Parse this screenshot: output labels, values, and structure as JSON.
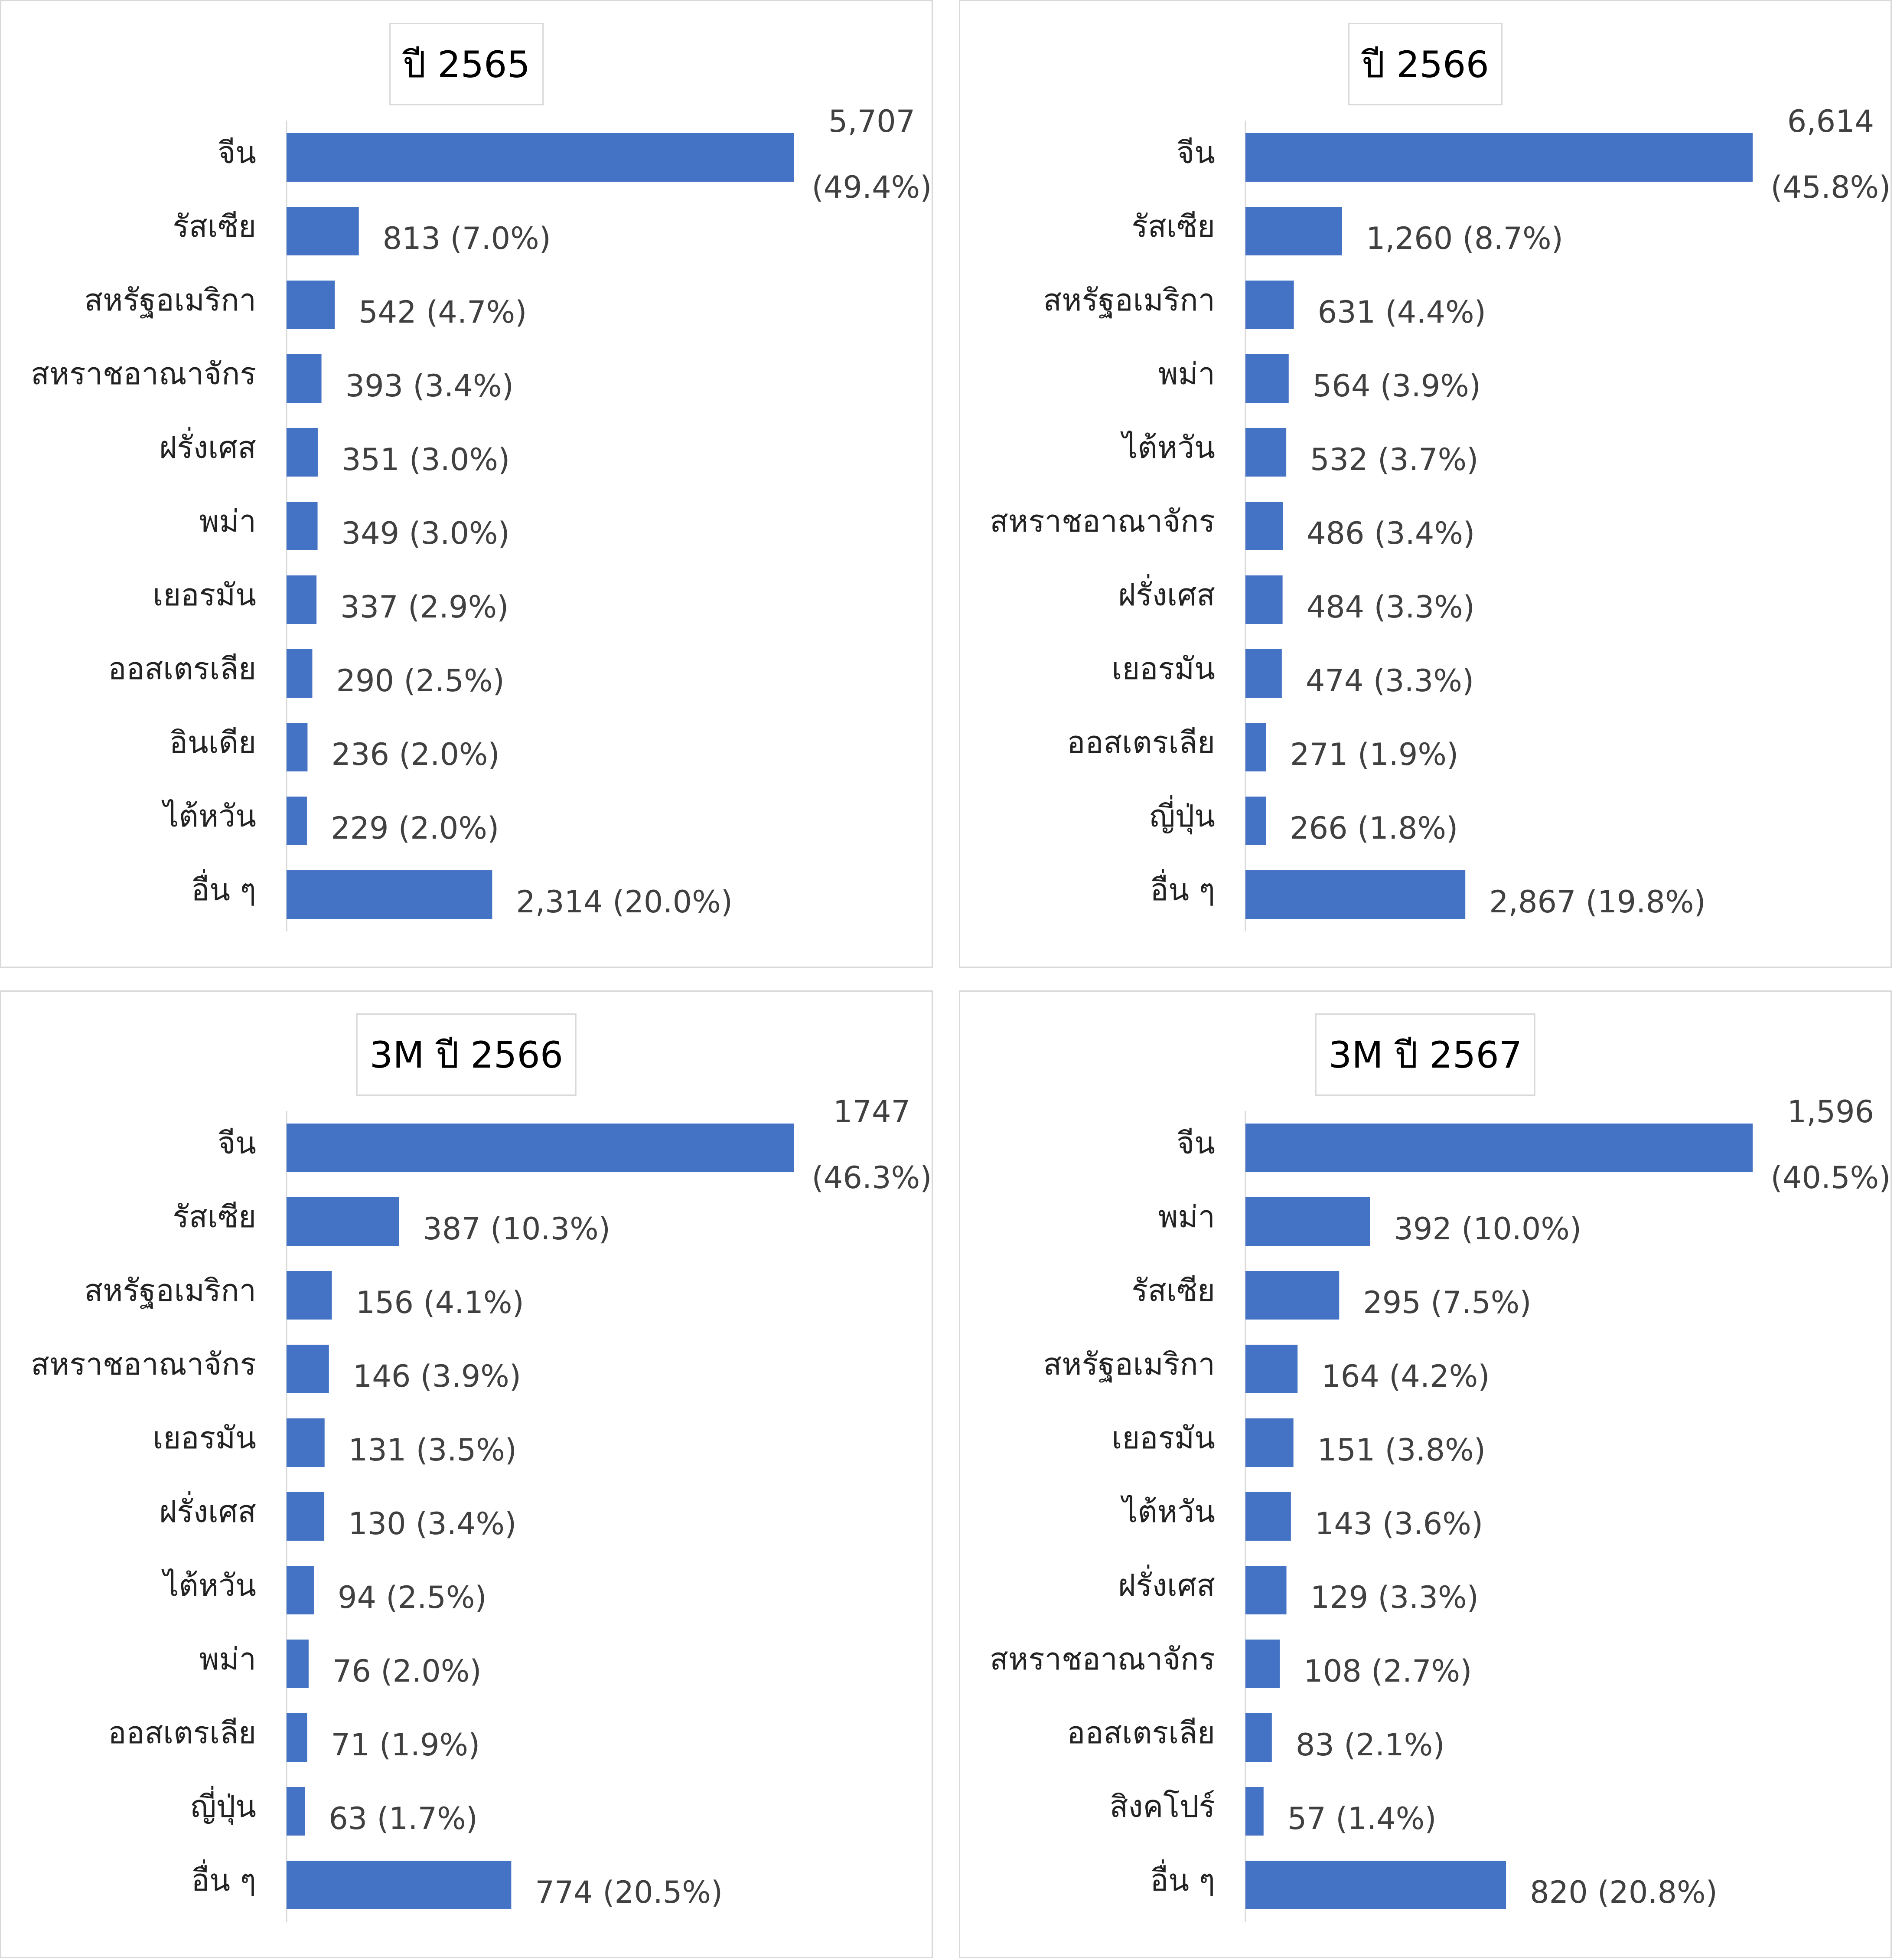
{
  "bar_color": "#4472c4",
  "chart_data": [
    {
      "type": "bar",
      "orientation": "horizontal",
      "title": "ปี 2565",
      "categories": [
        "จีน",
        "รัสเซีย",
        "สหรัฐอเมริกา",
        "สหราชอาณาจักร",
        "ฝรั่งเศส",
        "พม่า",
        "เยอรมัน",
        "ออสเตรเลีย",
        "อินเดีย",
        "ไต้หวัน",
        "อื่น ๆ"
      ],
      "values": [
        5707,
        813,
        542,
        393,
        351,
        349,
        337,
        290,
        236,
        229,
        2314
      ],
      "value_labels": [
        "5,707",
        "813 (7.0%)",
        "542 (4.7%)",
        "393 (3.4%)",
        "351 (3.0%)",
        "349 (3.0%)",
        "337 (2.9%)",
        "290 (2.5%)",
        "236 (2.0%)",
        "229 (2.0%)",
        "2,314 (20.0%)"
      ],
      "first_label_pct": "(49.4%)"
    },
    {
      "type": "bar",
      "orientation": "horizontal",
      "title": "ปี 2566",
      "categories": [
        "จีน",
        "รัสเซีย",
        "สหรัฐอเมริกา",
        "พม่า",
        "ไต้หวัน",
        "สหราชอาณาจักร",
        "ฝรั่งเศส",
        "เยอรมัน",
        "ออสเตรเลีย",
        "ญี่ปุ่น",
        "อื่น ๆ"
      ],
      "values": [
        6614,
        1260,
        631,
        564,
        532,
        486,
        484,
        474,
        271,
        266,
        2867
      ],
      "value_labels": [
        "6,614",
        "1,260 (8.7%)",
        "631 (4.4%)",
        "564 (3.9%)",
        "532 (3.7%)",
        "486 (3.4%)",
        "484 (3.3%)",
        "474 (3.3%)",
        "271 (1.9%)",
        "266 (1.8%)",
        "2,867 (19.8%)"
      ],
      "first_label_pct": "(45.8%)"
    },
    {
      "type": "bar",
      "orientation": "horizontal",
      "title": "3M ปี 2566",
      "categories": [
        "จีน",
        "รัสเซีย",
        "สหรัฐอเมริกา",
        "สหราชอาณาจักร",
        "เยอรมัน",
        "ฝรั่งเศส",
        "ไต้หวัน",
        "พม่า",
        "ออสเตรเลีย",
        "ญี่ปุ่น",
        "อื่น ๆ"
      ],
      "values": [
        1747,
        387,
        156,
        146,
        131,
        130,
        94,
        76,
        71,
        63,
        774
      ],
      "value_labels": [
        "1747",
        "387 (10.3%)",
        "156 (4.1%)",
        "146 (3.9%)",
        "131 (3.5%)",
        "130 (3.4%)",
        "94 (2.5%)",
        "76 (2.0%)",
        "71 (1.9%)",
        "63 (1.7%)",
        "774 (20.5%)"
      ],
      "first_label_pct": "(46.3%)"
    },
    {
      "type": "bar",
      "orientation": "horizontal",
      "title": "3M ปี 2567",
      "categories": [
        "จีน",
        "พม่า",
        "รัสเซีย",
        "สหรัฐอเมริกา",
        "เยอรมัน",
        "ไต้หวัน",
        "ฝรั่งเศส",
        "สหราชอาณาจักร",
        "ออสเตรเลีย",
        "สิงคโปร์",
        "อื่น ๆ"
      ],
      "values": [
        1596,
        392,
        295,
        164,
        151,
        143,
        129,
        108,
        83,
        57,
        820
      ],
      "value_labels": [
        "1,596",
        "392 (10.0%)",
        "295 (7.5%)",
        "164 (4.2%)",
        "151 (3.8%)",
        "143 (3.6%)",
        "129 (3.3%)",
        "108 (2.7%)",
        "83 (2.1%)",
        "57 (1.4%)",
        "820 (20.8%)"
      ],
      "first_label_pct": "(40.5%)"
    }
  ]
}
